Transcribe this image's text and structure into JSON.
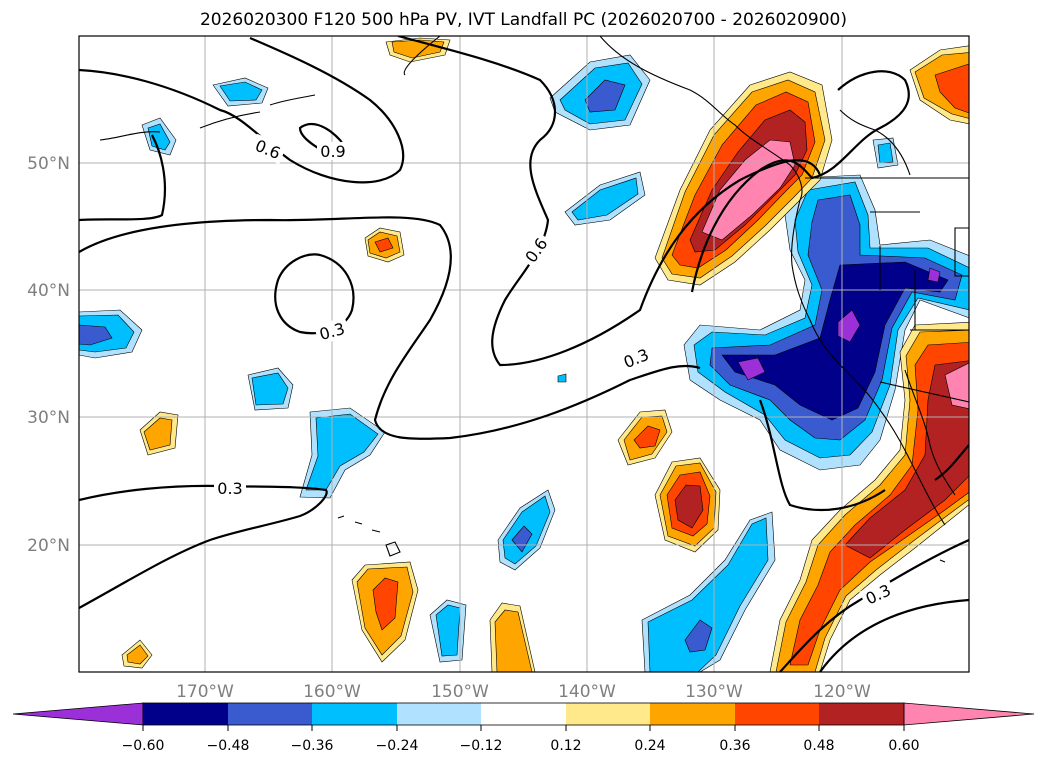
{
  "title": "2026020300 F120 500 hPa PV, IVT Landfall PC (2026020700 - 2026020900)",
  "map": {
    "lon_ticks": [
      "170°W",
      "160°W",
      "150°W",
      "140°W",
      "130°W",
      "120°W"
    ],
    "lat_ticks": [
      "50°N",
      "40°N",
      "30°N",
      "20°N"
    ],
    "contour_labels": [
      "0.6",
      "0.9",
      "0.6",
      "0.3",
      "0.3",
      "0.3",
      "0.3"
    ]
  },
  "colorbar": {
    "ticks": [
      "−0.60",
      "−0.48",
      "−0.36",
      "−0.24",
      "−0.12",
      "0.12",
      "0.24",
      "0.36",
      "0.48",
      "0.60"
    ],
    "colors": [
      "#9b30d9",
      "#00008b",
      "#3a5bd0",
      "#00bfff",
      "#b0e2ff",
      "#ffffff",
      "#ffe98a",
      "#ffa500",
      "#ff4500",
      "#b22222",
      "#ff85b0"
    ]
  }
}
